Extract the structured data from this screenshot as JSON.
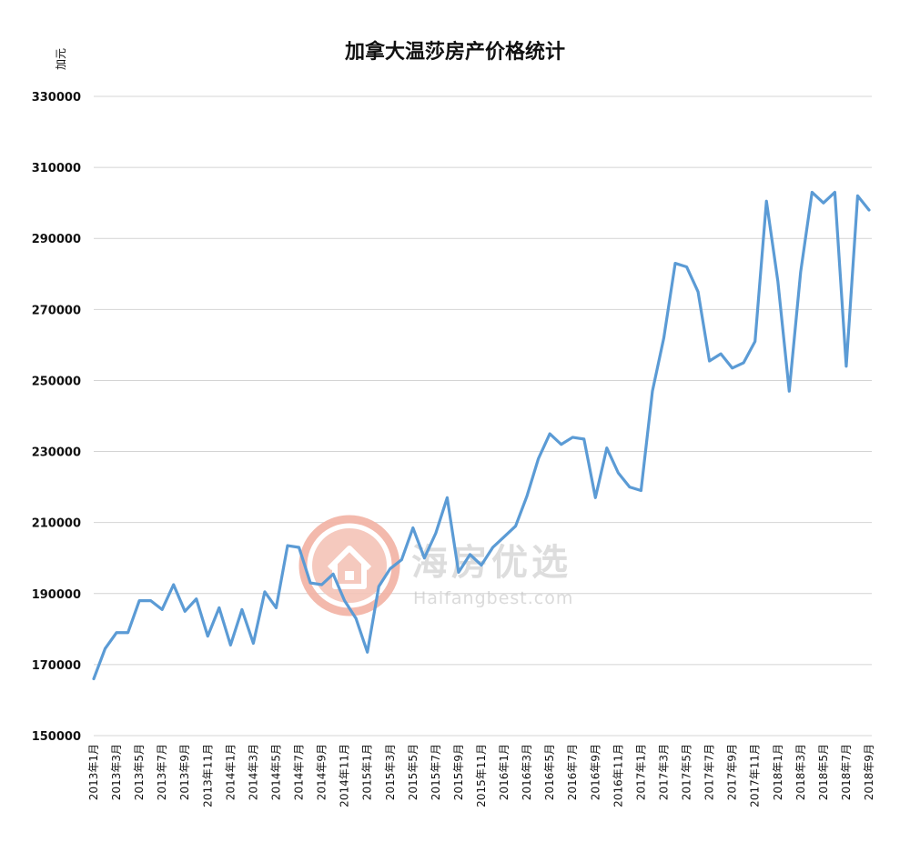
{
  "chart_data": {
    "type": "line",
    "title": "加拿大温莎房产价格统计",
    "ylabel": "加元",
    "xlabel": "",
    "ylim": [
      150000,
      330000
    ],
    "yticks": [
      150000,
      170000,
      190000,
      210000,
      230000,
      250000,
      270000,
      290000,
      310000,
      330000
    ],
    "grid": true,
    "line_color": "#5b9bd5",
    "tick_labels": [
      "2013年1月",
      "2013年3月",
      "2013年5月",
      "2013年7月",
      "2013年9月",
      "2013年11月",
      "2014年1月",
      "2014年3月",
      "2014年5月",
      "2014年7月",
      "2014年9月",
      "2014年11月",
      "2015年1月",
      "2015年3月",
      "2015年5月",
      "2015年7月",
      "2015年9月",
      "2015年11月",
      "2016年1月",
      "2016年3月",
      "2016年5月",
      "2016年7月",
      "2016年9月",
      "2016年11月",
      "2017年1月",
      "2017年3月",
      "2017年5月",
      "2017年7月",
      "2017年9月",
      "2017年11月",
      "2018年1月",
      "2018年3月",
      "2018年5月",
      "2018年7月",
      "2018年9月"
    ],
    "series": [
      {
        "values": [
          166000,
          174500,
          179000,
          179000,
          188000,
          188000,
          185500,
          192500,
          185000,
          188500,
          178000,
          186000,
          175500,
          185500,
          176000,
          190500,
          186000,
          203500,
          203000,
          193000,
          192500,
          195500,
          188000,
          183000,
          173500,
          192000,
          197000,
          199500,
          208500,
          200000,
          207000,
          217000,
          196000,
          201000,
          198000,
          203000,
          206000,
          209000,
          217500,
          228000,
          235000,
          232000,
          234000,
          233500,
          217000,
          231000,
          224000,
          220000,
          219000,
          247000,
          262000,
          283000,
          282000,
          275000,
          255500,
          257500,
          253500,
          255000,
          261000,
          300500,
          278000,
          247000,
          280500,
          303000,
          300000,
          303000,
          254000,
          302000,
          298000
        ]
      }
    ]
  },
  "watermark": {
    "brand": "海房优选",
    "url": "Haifangbest.com",
    "color": "#e8806b"
  }
}
